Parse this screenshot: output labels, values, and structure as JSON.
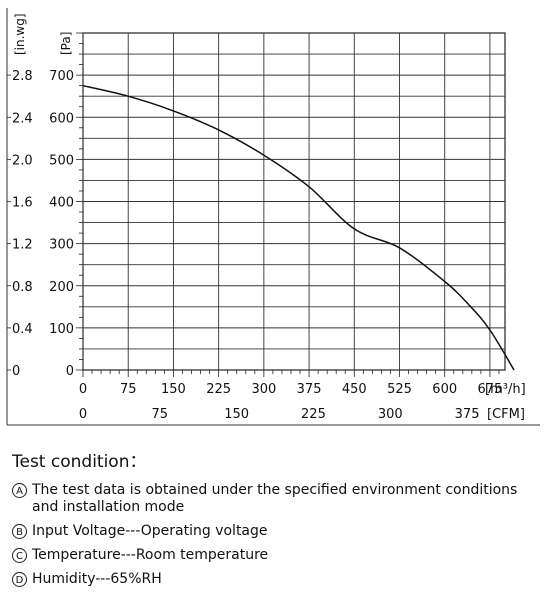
{
  "chart_data": {
    "type": "line",
    "y_units": [
      "[in.wg]",
      "[Pa]"
    ],
    "x_units": [
      "[m³/h]",
      "[CFM]"
    ],
    "x_ticks_m3h": [
      "0",
      "75",
      "150",
      "225",
      "300",
      "375",
      "450",
      "525",
      "600",
      "675"
    ],
    "x_ticks_cfm": [
      "0",
      "75",
      "150",
      "225",
      "300",
      "375"
    ],
    "y_ticks_pa": [
      "0",
      "100",
      "200",
      "300",
      "400",
      "500",
      "600",
      "700"
    ],
    "y_ticks_inwg": [
      "0",
      "0.4",
      "0.8",
      "1.2",
      "1.6",
      "2.0",
      "2.4",
      "2.8"
    ],
    "xlim": [
      0,
      700
    ],
    "ylim": [
      0,
      800
    ],
    "cfm_per_m3h": 0.5886,
    "grid": true,
    "series": [
      {
        "x": [
          0,
          75,
          150,
          225,
          300,
          375,
          450,
          525,
          600,
          640,
          675,
          715
        ],
        "y": [
          675,
          650,
          615,
          570,
          510,
          435,
          335,
          290,
          210,
          155,
          95,
          0
        ]
      }
    ]
  },
  "conditions": {
    "title": "Test condition：",
    "items": [
      {
        "marker": "A",
        "text": "The test data is obtained under the specified environment conditions and installation mode"
      },
      {
        "marker": "B",
        "text": "Input Voltage---Operating voltage"
      },
      {
        "marker": "C",
        "text": "Temperature---Room temperature"
      },
      {
        "marker": "D",
        "text": "Humidity---65%RH"
      }
    ]
  }
}
